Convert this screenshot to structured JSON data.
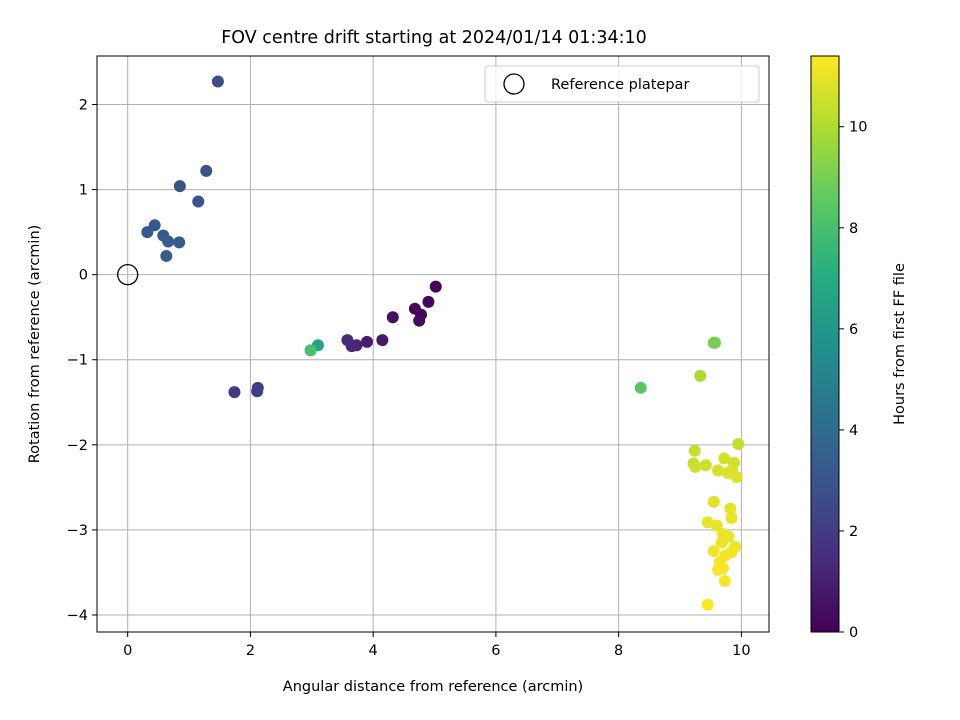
{
  "chart_data": {
    "type": "scatter",
    "title": "FOV centre drift starting at 2024/01/14 01:34:10",
    "xlabel": "Angular distance from reference (arcmin)",
    "ylabel": "Rotation from reference (arcmin)",
    "xlim": [
      -0.5,
      10.45
    ],
    "ylim": [
      -4.2,
      2.57
    ],
    "xticks": [
      0,
      2,
      4,
      6,
      8,
      10
    ],
    "yticks": [
      -4,
      -3,
      -2,
      -1,
      0,
      1,
      2
    ],
    "grid": true,
    "legend_position": "top-right",
    "reference": {
      "name": "Reference platepar",
      "x": 0,
      "y": 0
    },
    "colorbar": {
      "label": "Hours from first FF file",
      "colormap": "viridis",
      "range": [
        0,
        11.4
      ],
      "ticks": [
        0,
        2,
        4,
        6,
        8,
        10
      ]
    },
    "points": [
      {
        "x": 5.02,
        "y": -0.14,
        "c": 0.1
      },
      {
        "x": 4.9,
        "y": -0.32,
        "c": 0.2
      },
      {
        "x": 4.68,
        "y": -0.4,
        "c": 0.25
      },
      {
        "x": 4.78,
        "y": -0.47,
        "c": 0.3
      },
      {
        "x": 4.75,
        "y": -0.54,
        "c": 0.35
      },
      {
        "x": 4.32,
        "y": -0.5,
        "c": 0.5
      },
      {
        "x": 4.15,
        "y": -0.77,
        "c": 0.8
      },
      {
        "x": 3.9,
        "y": -0.79,
        "c": 1.0
      },
      {
        "x": 3.73,
        "y": -0.83,
        "c": 1.2
      },
      {
        "x": 3.65,
        "y": -0.84,
        "c": 1.3
      },
      {
        "x": 3.58,
        "y": -0.77,
        "c": 1.4
      },
      {
        "x": 1.74,
        "y": -1.38,
        "c": 1.9
      },
      {
        "x": 2.11,
        "y": -1.37,
        "c": 2.0
      },
      {
        "x": 2.12,
        "y": -1.33,
        "c": 2.1
      },
      {
        "x": 1.47,
        "y": 2.27,
        "c": 2.7
      },
      {
        "x": 1.28,
        "y": 1.22,
        "c": 2.8
      },
      {
        "x": 0.85,
        "y": 1.04,
        "c": 2.9
      },
      {
        "x": 1.15,
        "y": 0.86,
        "c": 3.0
      },
      {
        "x": 0.44,
        "y": 0.58,
        "c": 3.1
      },
      {
        "x": 0.32,
        "y": 0.5,
        "c": 3.15
      },
      {
        "x": 0.58,
        "y": 0.46,
        "c": 3.2
      },
      {
        "x": 0.66,
        "y": 0.39,
        "c": 3.25
      },
      {
        "x": 0.84,
        "y": 0.38,
        "c": 3.3
      },
      {
        "x": 0.63,
        "y": 0.22,
        "c": 3.35
      },
      {
        "x": 3.1,
        "y": -0.83,
        "c": 6.6
      },
      {
        "x": 2.98,
        "y": -0.89,
        "c": 8.0
      },
      {
        "x": 8.36,
        "y": -1.33,
        "c": 8.4
      },
      {
        "x": 9.55,
        "y": -0.8,
        "c": 8.9
      },
      {
        "x": 9.57,
        "y": -0.8,
        "c": 9.0
      },
      {
        "x": 9.33,
        "y": -1.19,
        "c": 9.9
      },
      {
        "x": 9.95,
        "y": -1.99,
        "c": 10.3
      },
      {
        "x": 9.24,
        "y": -2.07,
        "c": 10.4
      },
      {
        "x": 9.22,
        "y": -2.22,
        "c": 10.45
      },
      {
        "x": 9.25,
        "y": -2.26,
        "c": 10.5
      },
      {
        "x": 9.42,
        "y": -2.24,
        "c": 10.55
      },
      {
        "x": 9.88,
        "y": -2.21,
        "c": 10.6
      },
      {
        "x": 9.72,
        "y": -2.16,
        "c": 10.65
      },
      {
        "x": 9.62,
        "y": -2.3,
        "c": 10.7
      },
      {
        "x": 9.78,
        "y": -2.33,
        "c": 10.75
      },
      {
        "x": 9.85,
        "y": -2.3,
        "c": 10.8
      },
      {
        "x": 9.92,
        "y": -2.38,
        "c": 10.85
      },
      {
        "x": 9.55,
        "y": -2.67,
        "c": 10.9
      },
      {
        "x": 9.82,
        "y": -2.75,
        "c": 10.95
      },
      {
        "x": 9.84,
        "y": -2.86,
        "c": 11.0
      },
      {
        "x": 9.45,
        "y": -2.91,
        "c": 11.0
      },
      {
        "x": 9.6,
        "y": -2.95,
        "c": 11.05
      },
      {
        "x": 9.7,
        "y": -3.05,
        "c": 11.05
      },
      {
        "x": 9.79,
        "y": -3.08,
        "c": 11.1
      },
      {
        "x": 9.68,
        "y": -3.15,
        "c": 11.1
      },
      {
        "x": 9.9,
        "y": -3.2,
        "c": 11.1
      },
      {
        "x": 9.55,
        "y": -3.25,
        "c": 11.15
      },
      {
        "x": 9.84,
        "y": -3.26,
        "c": 11.15
      },
      {
        "x": 9.74,
        "y": -3.3,
        "c": 11.2
      },
      {
        "x": 9.65,
        "y": -3.38,
        "c": 11.2
      },
      {
        "x": 9.7,
        "y": -3.45,
        "c": 11.25
      },
      {
        "x": 9.62,
        "y": -3.47,
        "c": 11.3
      },
      {
        "x": 9.73,
        "y": -3.6,
        "c": 11.3
      },
      {
        "x": 9.45,
        "y": -3.88,
        "c": 11.35
      }
    ]
  }
}
